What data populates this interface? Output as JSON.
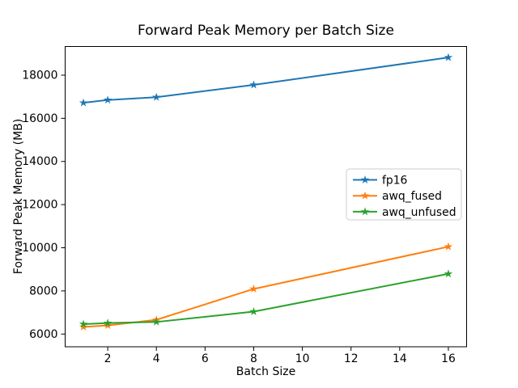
{
  "figure": {
    "background": "#ffffff",
    "text_color": "#000000",
    "spine_color": "#000000",
    "legend_border_color": "#cccccc",
    "legend_background": "#ffffff"
  },
  "chart_data": {
    "type": "line",
    "title": "Forward Peak Memory per Batch Size",
    "xlabel": "Batch Size",
    "ylabel": "Forward Peak Memory (MB)",
    "x": [
      1,
      2,
      4,
      8,
      16
    ],
    "series": [
      {
        "name": "fp16",
        "color": "#1f77b4",
        "marker": "star",
        "values": [
          16720,
          16850,
          16980,
          17550,
          18820
        ]
      },
      {
        "name": "awq_fused",
        "color": "#ff7f0e",
        "marker": "star",
        "values": [
          6330,
          6400,
          6660,
          8090,
          10050
        ]
      },
      {
        "name": "awq_unfused",
        "color": "#2ca02c",
        "marker": "star",
        "values": [
          6460,
          6510,
          6560,
          7040,
          8790
        ]
      }
    ],
    "xticks": [
      2,
      4,
      6,
      8,
      10,
      12,
      14,
      16
    ],
    "xtick_labels": [
      "2",
      "4",
      "6",
      "8",
      "10",
      "12",
      "14",
      "16"
    ],
    "yticks": [
      6000,
      8000,
      10000,
      12000,
      14000,
      16000,
      18000
    ],
    "ytick_labels": [
      "6000",
      "8000",
      "10000",
      "12000",
      "14000",
      "16000",
      "18000"
    ],
    "xlim": [
      0.25,
      16.75
    ],
    "ylim": [
      5410,
      19330
    ],
    "grid": false,
    "legend_position": "center-right",
    "legend_entries": [
      "fp16",
      "awq_fused",
      "awq_unfused"
    ]
  }
}
